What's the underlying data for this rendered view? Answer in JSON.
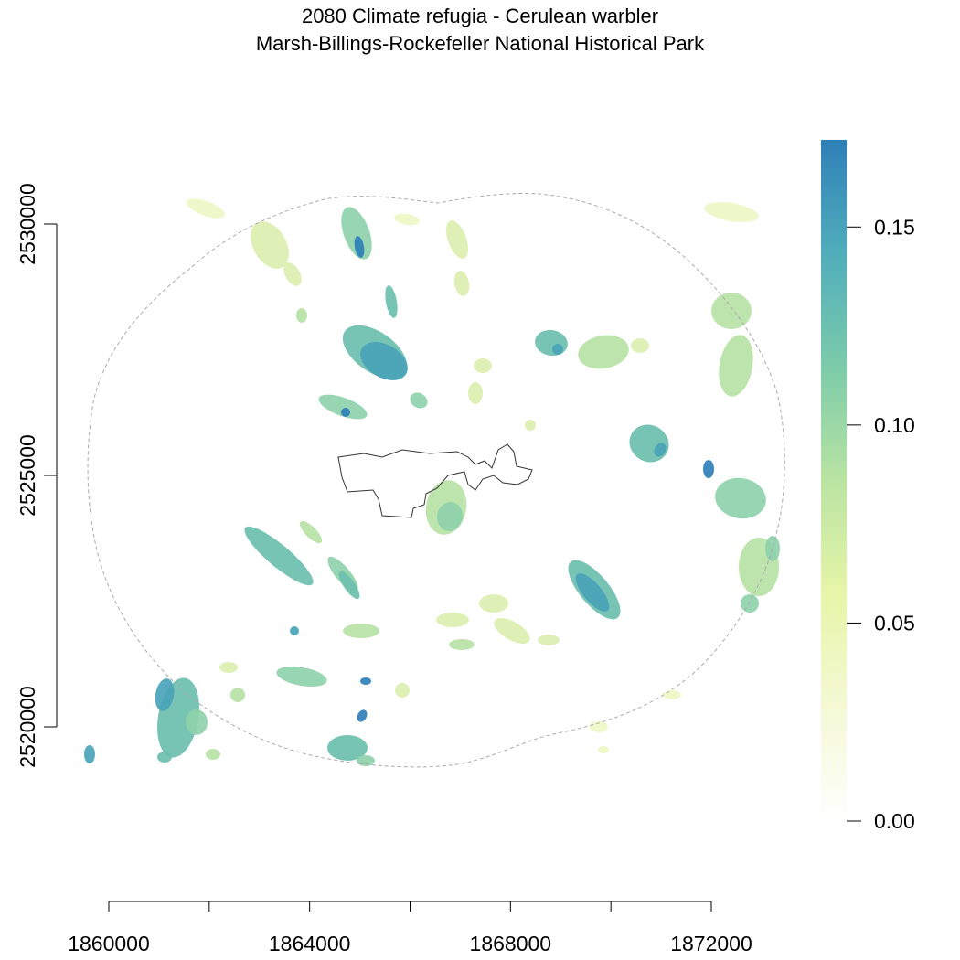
{
  "title": {
    "line1": "2080 Climate refugia - Cerulean warbler",
    "line2": "Marsh-Billings-Rockefeller National Historical Park"
  },
  "map": {
    "x_axis": {
      "range": [
        1858000,
        1874000
      ],
      "ticks": [
        1860000,
        1862000,
        1864000,
        1866000,
        1868000,
        1870000,
        1872000
      ],
      "labels": [
        "1860000",
        "",
        "1864000",
        "",
        "1868000",
        "",
        "1872000"
      ]
    },
    "y_axis": {
      "range": [
        2518500,
        2531800
      ],
      "ticks": [
        2520000,
        2525000,
        2530000
      ],
      "labels": [
        "2520000",
        "2525000",
        "2530000"
      ]
    },
    "buffer_boundary": {
      "style": "dashed",
      "color": "#aaaaaa"
    },
    "park_boundary": {
      "color": "#333333"
    }
  },
  "legend": {
    "range": [
      0,
      0.172
    ],
    "ticks": [
      0.0,
      0.05,
      0.1,
      0.15
    ],
    "labels": [
      "0.00",
      "0.05",
      "0.10",
      "0.15"
    ],
    "colors": [
      "#ffffff",
      "#f4f9d4",
      "#e7f5a8",
      "#b9e4a2",
      "#7ccba9",
      "#50aebb",
      "#2f7fb8"
    ]
  }
}
